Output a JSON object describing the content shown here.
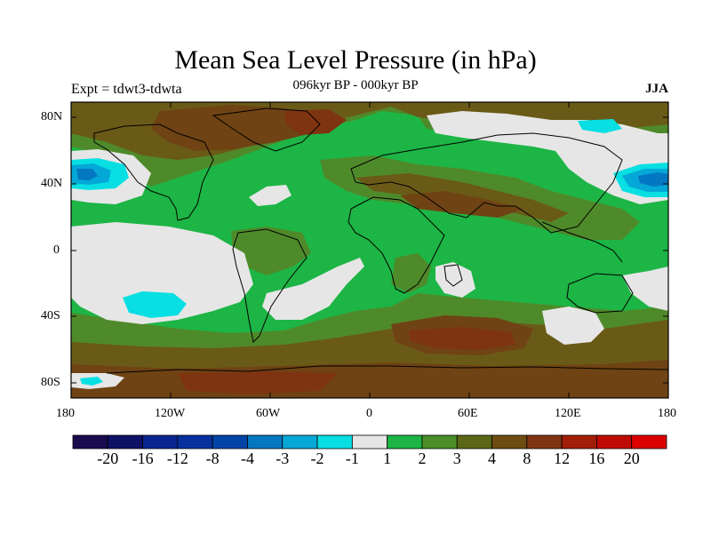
{
  "title": "Mean Sea Level Pressure (in hPa)",
  "subtitle": {
    "left": "Expt = tdwt3-tdwta",
    "center": "096kyr BP - 000kyr BP",
    "right": "JJA"
  },
  "axes": {
    "x_ticks": [
      "180",
      "120W",
      "60W",
      "0",
      "60E",
      "120E",
      "180"
    ],
    "y_ticks": [
      "80N",
      "40N",
      "0",
      "40S",
      "80S"
    ]
  },
  "colorbar": {
    "labels": [
      "-20",
      "-16",
      "-12",
      "-8",
      "-4",
      "-3",
      "-2",
      "-1",
      "1",
      "2",
      "3",
      "4",
      "8",
      "12",
      "16",
      "20"
    ],
    "colors": [
      "#1a0b4e",
      "#0e1166",
      "#0a2590",
      "#07319f",
      "#0344a8",
      "#0377c2",
      "#05a7d7",
      "#07dfe2",
      "#e6e6e6",
      "#1db545",
      "#4b8e28",
      "#5b6716",
      "#6e4c12",
      "#7f3411",
      "#a31e08",
      "#c00b04",
      "#dc0000"
    ]
  },
  "palette": {
    "green": "#1db545",
    "olive": "#4f8a2a",
    "darkolive": "#6a5a17",
    "brown": "#6f4314",
    "rust": "#7f3411",
    "white": "#e6e6e6",
    "cyan": "#07dfe2",
    "lightblue": "#05a7d7",
    "blue": "#0377c2",
    "coast": "#000000"
  }
}
